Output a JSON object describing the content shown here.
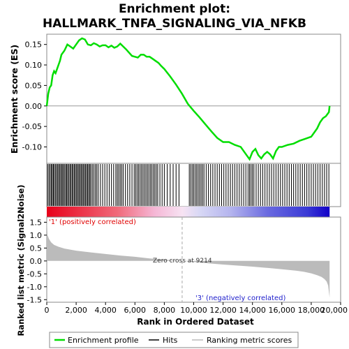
{
  "chart_data": {
    "type": "line",
    "title_line1": "Enrichment plot:",
    "title_line2": "HALLMARK_TNFA_SIGNALING_VIA_NFKB",
    "es_panel": {
      "ylabel": "Enrichment score (ES)",
      "ylim": [
        -0.14,
        0.175
      ],
      "yticks": [
        "0.15",
        "0.10",
        "0.05",
        "0.00",
        "-0.05",
        "-0.10"
      ],
      "ytick_values": [
        0.15,
        0.1,
        0.05,
        0.0,
        -0.05,
        -0.1
      ],
      "series": [
        {
          "color": "#00dd00",
          "x": [
            0,
            100,
            200,
            300,
            400,
            500,
            600,
            700,
            800,
            900,
            1000,
            1200,
            1400,
            1600,
            1800,
            2000,
            2200,
            2400,
            2600,
            2800,
            3000,
            3200,
            3400,
            3600,
            3800,
            4000,
            4200,
            4400,
            4600,
            4800,
            5000,
            5200,
            5400,
            5600,
            5800,
            6000,
            6200,
            6400,
            6600,
            6800,
            7000,
            7200,
            7400,
            7600,
            7800,
            8000,
            8400,
            8800,
            9200,
            9600,
            10000,
            10400,
            10800,
            11200,
            11600,
            12000,
            12400,
            12800,
            13200,
            13600,
            13800,
            14000,
            14200,
            14400,
            14600,
            14800,
            15000,
            15200,
            15400,
            15600,
            15800,
            16000,
            16400,
            16800,
            17200,
            17600,
            18000,
            18200,
            18400,
            18600,
            18800,
            19000,
            19200,
            19250
          ],
          "y": [
            0.0,
            0.03,
            0.045,
            0.05,
            0.075,
            0.085,
            0.08,
            0.09,
            0.1,
            0.11,
            0.125,
            0.135,
            0.15,
            0.145,
            0.14,
            0.15,
            0.16,
            0.165,
            0.162,
            0.15,
            0.148,
            0.153,
            0.15,
            0.145,
            0.148,
            0.148,
            0.143,
            0.147,
            0.142,
            0.145,
            0.152,
            0.145,
            0.138,
            0.13,
            0.122,
            0.12,
            0.118,
            0.125,
            0.125,
            0.12,
            0.12,
            0.115,
            0.11,
            0.105,
            0.097,
            0.09,
            0.072,
            0.052,
            0.03,
            0.005,
            -0.012,
            -0.028,
            -0.045,
            -0.062,
            -0.078,
            -0.088,
            -0.088,
            -0.095,
            -0.1,
            -0.12,
            -0.13,
            -0.112,
            -0.105,
            -0.12,
            -0.128,
            -0.118,
            -0.112,
            -0.118,
            -0.128,
            -0.11,
            -0.1,
            -0.1,
            -0.095,
            -0.092,
            -0.085,
            -0.08,
            -0.075,
            -0.065,
            -0.055,
            -0.04,
            -0.03,
            -0.025,
            -0.015,
            0.0
          ]
        }
      ]
    },
    "hits_x": [
      60,
      150,
      230,
      310,
      380,
      450,
      520,
      600,
      680,
      750,
      830,
      900,
      980,
      1050,
      1120,
      1200,
      1280,
      1350,
      1420,
      1500,
      1580,
      1650,
      1730,
      1800,
      1880,
      1950,
      2030,
      2100,
      2180,
      2250,
      2330,
      2400,
      2480,
      2550,
      2630,
      2700,
      2780,
      2850,
      2930,
      3000,
      3100,
      3200,
      3300,
      3400,
      3500,
      3650,
      3800,
      3950,
      4100,
      4250,
      4400,
      4550,
      4700,
      4800,
      4900,
      5000,
      5100,
      5200,
      5350,
      5500,
      5650,
      5800,
      5950,
      6050,
      6150,
      6250,
      6350,
      6450,
      6550,
      6650,
      6750,
      6850,
      6950,
      7050,
      7150,
      7250,
      7350,
      7450,
      7550,
      7700,
      7850,
      8000,
      8200,
      8400,
      8600,
      8800,
      9000,
      9700,
      9800,
      9900,
      10000,
      10100,
      10200,
      10300,
      10400,
      10500,
      10600,
      10700,
      10850,
      11000,
      11150,
      11300,
      11450,
      11600,
      11750,
      11900,
      12050,
      12200,
      12350,
      12500,
      12650,
      12800,
      12950,
      13100,
      13250,
      13400,
      13550,
      13700,
      13800,
      13900,
      14000,
      14100,
      14250,
      14400,
      14550,
      14700,
      14850,
      15000,
      15150,
      15300,
      15450,
      15600,
      15750,
      15900,
      16050,
      16200,
      16350,
      16500,
      16650,
      16800,
      16950,
      17100,
      17250,
      17400,
      17550,
      17700,
      17850,
      18000,
      18150,
      18300,
      18450,
      18600,
      18750,
      18900,
      19050,
      19200
    ],
    "ranked_panel": {
      "ylabel": "Ranked list metric (Signal2Noise)",
      "ylim": [
        -1.6,
        1.7
      ],
      "yticks": [
        "1.5",
        "1.0",
        "0.5",
        "0.0",
        "-0.5",
        "-1.0",
        "-1.5"
      ],
      "ytick_values": [
        1.5,
        1.0,
        0.5,
        0.0,
        -0.5,
        -1.0,
        -1.5
      ],
      "metric_x": [
        0,
        50,
        150,
        300,
        500,
        800,
        1200,
        2000,
        3000,
        4000,
        5000,
        6000,
        7000,
        8000,
        9214,
        10000,
        11000,
        12000,
        13000,
        14000,
        15000,
        16000,
        17000,
        17500,
        18000,
        18400,
        18700,
        18900,
        19050,
        19150,
        19250
      ],
      "metric_y": [
        1.7,
        1.0,
        0.85,
        0.72,
        0.62,
        0.55,
        0.48,
        0.4,
        0.33,
        0.27,
        0.21,
        0.16,
        0.1,
        0.05,
        0.0,
        -0.04,
        -0.09,
        -0.14,
        -0.18,
        -0.22,
        -0.27,
        -0.32,
        -0.38,
        -0.42,
        -0.48,
        -0.55,
        -0.62,
        -0.7,
        -0.8,
        -0.95,
        -1.42
      ],
      "label_pos": "'1' (positively correlated)",
      "label_neg": "'3' (negatively correlated)",
      "zero_cross_label": "Zero cross at 9214",
      "zero_cross": 9214
    },
    "xlabel": "Rank in Ordered Dataset",
    "xlim": [
      0,
      20000
    ],
    "xticks": [
      "0",
      "2,000",
      "4,000",
      "6,000",
      "8,000",
      "10,000",
      "12,000",
      "14,000",
      "16,000",
      "18,000",
      "20,000"
    ],
    "xtick_values": [
      0,
      2000,
      4000,
      6000,
      8000,
      10000,
      12000,
      14000,
      16000,
      18000,
      20000
    ],
    "n_genes": 19250,
    "legend": {
      "placement": "bottom",
      "items": [
        "Enrichment profile",
        "Hits",
        "Ranking metric scores"
      ]
    },
    "colors": {
      "es_line": "#00dd00",
      "hits": "#000000",
      "metric_fill": "#bbbbbb",
      "pos_color": "#ff0000",
      "neg_color": "#0000ff",
      "zero_line": "#999999"
    }
  }
}
